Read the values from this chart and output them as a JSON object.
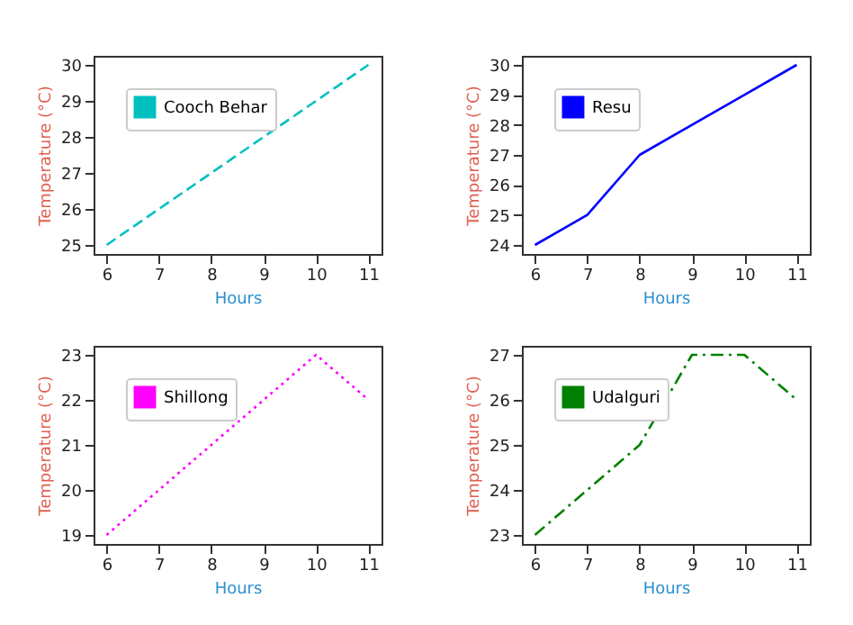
{
  "chart_data": [
    {
      "type": "line",
      "x": [
        6,
        7,
        8,
        9,
        10,
        11
      ],
      "xlabel": "Hours",
      "ylabel": "Temperature (°C)",
      "xlim": [
        5.75,
        11.25
      ],
      "xticks": [
        6,
        7,
        8,
        9,
        10,
        11
      ],
      "ylim": [
        24.75,
        30.25
      ],
      "yticks": [
        25,
        26,
        27,
        28,
        29,
        30
      ],
      "legend": "top left",
      "line_style": "dashed",
      "grid": false,
      "series": [
        {
          "name": "Cooch Behar",
          "color": "#00bfbf",
          "values": [
            25,
            26,
            27,
            28,
            29,
            30
          ]
        }
      ]
    },
    {
      "type": "line",
      "x": [
        6,
        7,
        8,
        9,
        10,
        11
      ],
      "xlabel": "Hours",
      "ylabel": "Temperature (°C)",
      "xlim": [
        5.75,
        11.25
      ],
      "xticks": [
        6,
        7,
        8,
        9,
        10,
        11
      ],
      "ylim": [
        23.7,
        30.3
      ],
      "yticks": [
        24,
        25,
        26,
        27,
        28,
        29,
        30
      ],
      "legend": "top left",
      "line_style": "solid",
      "grid": false,
      "series": [
        {
          "name": "Resu",
          "color": "#0000ff",
          "values": [
            24,
            25,
            27,
            28,
            29,
            30
          ]
        }
      ]
    },
    {
      "type": "line",
      "x": [
        6,
        7,
        8,
        9,
        10,
        11
      ],
      "xlabel": "Hours",
      "ylabel": "Temperature (°C)",
      "xlim": [
        5.75,
        11.25
      ],
      "xticks": [
        6,
        7,
        8,
        9,
        10,
        11
      ],
      "ylim": [
        18.8,
        23.2
      ],
      "yticks": [
        19,
        20,
        21,
        22,
        23
      ],
      "legend": "top left",
      "line_style": "dotted",
      "grid": false,
      "series": [
        {
          "name": "Shillong",
          "color": "#ff00ff",
          "values": [
            19,
            20,
            21,
            22,
            23,
            22
          ]
        }
      ]
    },
    {
      "type": "line",
      "x": [
        6,
        7,
        8,
        9,
        10,
        11
      ],
      "xlabel": "Hours",
      "ylabel": "Temperature (°C)",
      "xlim": [
        5.75,
        11.25
      ],
      "xticks": [
        6,
        7,
        8,
        9,
        10,
        11
      ],
      "ylim": [
        22.8,
        27.2
      ],
      "yticks": [
        23,
        24,
        25,
        26,
        27
      ],
      "legend": "top left",
      "line_style": "dashdot",
      "grid": false,
      "series": [
        {
          "name": "Udalguri",
          "color": "#008000",
          "values": [
            23,
            24,
            25,
            27,
            27,
            26
          ]
        }
      ]
    }
  ]
}
